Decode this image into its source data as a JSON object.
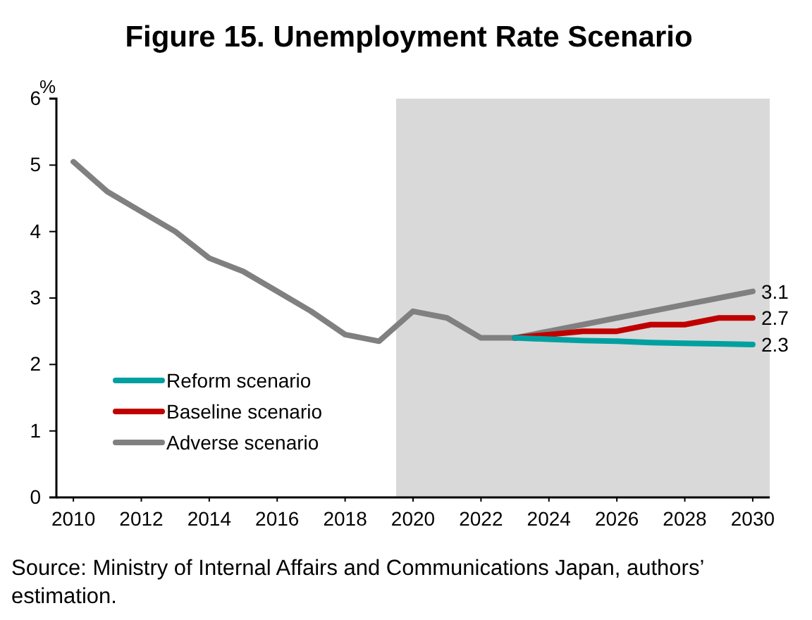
{
  "chart_data": {
    "type": "line",
    "title": "Figure 15. Unemployment Rate Scenario",
    "ylabel": "%",
    "xlim": [
      2009.5,
      2030.5
    ],
    "xticks": [
      2010,
      2012,
      2014,
      2016,
      2018,
      2020,
      2022,
      2024,
      2026,
      2028,
      2030
    ],
    "ylim": [
      0,
      6
    ],
    "yticks": [
      0,
      1,
      2,
      3,
      4,
      5,
      6
    ],
    "grid": false,
    "legend": "bottom left",
    "bands": [
      {
        "axis": "x",
        "from": 2019.5,
        "to": 2030.5,
        "color": "#d9d9d9"
      }
    ],
    "series": [
      {
        "name": "Reform scenario",
        "color": "#00a0a0",
        "x": [
          2023,
          2024,
          2025,
          2026,
          2027,
          2028,
          2029,
          2030
        ],
        "values": [
          2.4,
          2.38,
          2.36,
          2.35,
          2.33,
          2.32,
          2.31,
          2.3
        ],
        "value_labels": [
          null,
          null,
          null,
          null,
          null,
          null,
          null,
          "2.3"
        ]
      },
      {
        "name": "Baseline scenario",
        "color": "#c00000",
        "x": [
          2023,
          2024,
          2025,
          2026,
          2027,
          2028,
          2029,
          2030
        ],
        "values": [
          2.4,
          2.45,
          2.5,
          2.5,
          2.6,
          2.6,
          2.7,
          2.7
        ],
        "value_labels": [
          null,
          null,
          null,
          null,
          null,
          null,
          null,
          "2.7"
        ]
      },
      {
        "name": "Adverse scenario",
        "color": "#808080",
        "x": [
          2010,
          2011,
          2012,
          2013,
          2014,
          2015,
          2016,
          2017,
          2018,
          2019,
          2020,
          2021,
          2022,
          2023,
          2024,
          2025,
          2026,
          2027,
          2028,
          2029,
          2030
        ],
        "values": [
          5.05,
          4.6,
          4.3,
          4.0,
          3.6,
          3.4,
          3.1,
          2.8,
          2.45,
          2.35,
          2.8,
          2.7,
          2.4,
          2.4,
          2.5,
          2.6,
          2.7,
          2.8,
          2.9,
          3.0,
          3.1
        ],
        "value_labels": [
          null,
          null,
          null,
          null,
          null,
          null,
          null,
          null,
          null,
          null,
          null,
          null,
          null,
          null,
          null,
          null,
          null,
          null,
          null,
          null,
          "3.1"
        ]
      }
    ],
    "annotations": [
      "Source: Ministry of Internal Affairs and Communications Japan, authors’ estimation."
    ]
  }
}
